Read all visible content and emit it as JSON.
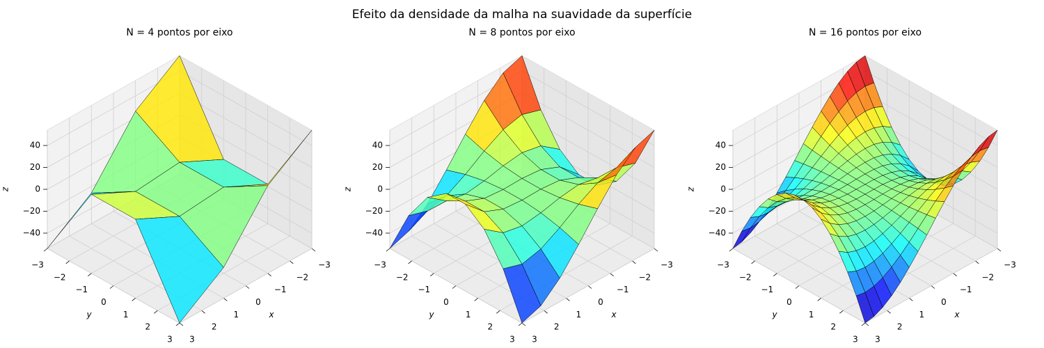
{
  "title": "Efeito da densidade da malha na suavidade da superfície",
  "chart_data": [
    {
      "type": "surface",
      "title": "N = 4 pontos por eixo",
      "colormap": "jet",
      "grid": true,
      "xlabel": "x",
      "ylabel": "y",
      "zlabel": "z",
      "x": [
        -3,
        -1,
        1,
        3
      ],
      "y": [
        -3,
        -1,
        1,
        3
      ],
      "z": [
        [
          54,
          26,
          -26,
          -54
        ],
        [
          -18,
          2,
          -2,
          18
        ],
        [
          -18,
          2,
          -2,
          18
        ],
        [
          54,
          26,
          -26,
          -54
        ]
      ],
      "xlim": [
        -3,
        3
      ],
      "ylim": [
        -3,
        3
      ],
      "zlim": [
        -54,
        54
      ],
      "xticks": [
        {
          "value": -3,
          "label": "−3"
        },
        {
          "value": -2,
          "label": "−2"
        },
        {
          "value": -1,
          "label": "−1"
        },
        0,
        1,
        2,
        3
      ],
      "yticks": [
        {
          "value": -3,
          "label": "−3"
        },
        {
          "value": -2,
          "label": "−2"
        },
        {
          "value": -1,
          "label": "−1"
        },
        0,
        1,
        2,
        3
      ],
      "zticks": [
        {
          "value": -40,
          "label": "−40"
        },
        {
          "value": -20,
          "label": "−20"
        },
        0,
        20,
        40
      ]
    },
    {
      "type": "surface",
      "title": "N = 8 pontos por eixo",
      "colormap": "jet",
      "grid": true,
      "xlabel": "x",
      "ylabel": "y",
      "zlabel": "z",
      "x": [
        -3,
        -2.142857,
        -1.285714,
        -0.428571,
        0.428571,
        1.285714,
        2.142857,
        3
      ],
      "y": [
        -3,
        -2.142857,
        -1.285714,
        -0.428571,
        0.428571,
        1.285714,
        2.142857,
        3
      ],
      "z": [
        [
          54,
          48,
          32.6,
          11.5,
          -11.5,
          -32.6,
          -48,
          -54
        ],
        [
          14.3,
          19.7,
          15.6,
          5.8,
          -5.8,
          -15.6,
          -19.7,
          -14.3
        ],
        [
          -12.1,
          0.8,
          4.3,
          2,
          -2,
          -4.3,
          -0.8,
          12.1
        ],
        [
          -25.3,
          -8.7,
          -1.4,
          0.2,
          -0.2,
          1.4,
          8.7,
          25.3
        ],
        [
          -25.3,
          -8.7,
          -1.4,
          0.2,
          -0.2,
          1.4,
          8.7,
          25.3
        ],
        [
          -12.1,
          0.8,
          4.3,
          2,
          -2,
          -4.3,
          -0.8,
          12.1
        ],
        [
          14.3,
          19.7,
          15.6,
          5.8,
          -5.8,
          -15.6,
          -19.7,
          -14.3
        ],
        [
          54,
          48,
          32.6,
          11.5,
          -11.5,
          -32.6,
          -48,
          -54
        ]
      ],
      "xlim": [
        -3,
        3
      ],
      "ylim": [
        -3,
        3
      ],
      "zlim": [
        -54,
        54
      ],
      "xticks": [
        {
          "value": -3,
          "label": "−3"
        },
        {
          "value": -2,
          "label": "−2"
        },
        {
          "value": -1,
          "label": "−1"
        },
        0,
        1,
        2,
        3
      ],
      "yticks": [
        {
          "value": -3,
          "label": "−3"
        },
        {
          "value": -2,
          "label": "−2"
        },
        {
          "value": -1,
          "label": "−1"
        },
        0,
        1,
        2,
        3
      ],
      "zticks": [
        {
          "value": -40,
          "label": "−40"
        },
        {
          "value": -20,
          "label": "−20"
        },
        0,
        20,
        40
      ]
    },
    {
      "type": "surface",
      "title": "N = 16 pontos por eixo",
      "colormap": "jet",
      "grid": true,
      "xlabel": "x",
      "ylabel": "y",
      "zlabel": "z",
      "x": [
        -3,
        -2.6,
        -2.2,
        -1.8,
        -1.4,
        -1,
        -0.6,
        -0.2,
        0.2,
        0.6,
        1,
        1.4,
        1.8,
        2.2,
        2.6,
        3
      ],
      "y": [
        -3,
        -2.6,
        -2.2,
        -1.8,
        -1.4,
        -1,
        -0.6,
        -0.2,
        0.2,
        0.6,
        1,
        1.4,
        1.8,
        2.2,
        2.6,
        3
      ],
      "z": [
        [
          54,
          52.6,
          48.8,
          42.8,
          35.1,
          26,
          16,
          5.4,
          -5.4,
          -16,
          -26,
          -35.1,
          -42.8,
          -48.8,
          -52.6,
          -54
        ],
        [
          33.8,
          35.2,
          34,
          30.7,
          25.6,
          19.3,
          12,
          4,
          -4,
          -12,
          -19.3,
          -25.6,
          -30.7,
          -34,
          -35.2,
          -33.8
        ],
        [
          16.6,
          20.2,
          21.3,
          20.3,
          17.6,
          13.5,
          8.5,
          2.9,
          -2.9,
          -8.5,
          -13.5,
          -17.6,
          -20.3,
          -21.3,
          -20.2,
          -16.6
        ],
        [
          2.2,
          7.7,
          10.7,
          11.7,
          10.9,
          8.7,
          5.6,
          1.9,
          -1.9,
          -5.6,
          -8.7,
          -10.9,
          -11.7,
          -10.7,
          -7.7,
          -2.2
        ],
        [
          -9.4,
          -2.3,
          2.3,
          4.8,
          5.5,
          4.9,
          3.3,
          1.2,
          -1.2,
          -3.3,
          -4.9,
          -5.5,
          -4.8,
          -2.3,
          2.3,
          9.4
        ],
        [
          -18,
          -9.8,
          -4,
          -0.4,
          1.5,
          2,
          1.6,
          0.6,
          -0.6,
          -1.6,
          -2,
          -1.5,
          0.4,
          4,
          9.8,
          18
        ],
        [
          -23.8,
          -14.8,
          -8.3,
          -3.9,
          -1.2,
          0.1,
          0.4,
          0.2,
          -0.2,
          -0.4,
          -0.1,
          1.2,
          3.9,
          8.3,
          14.8,
          23.8
        ],
        [
          -26.6,
          -17.3,
          -10.4,
          -5.6,
          -2.6,
          -0.9,
          -0.1,
          0,
          0,
          0.1,
          0.9,
          2.6,
          5.6,
          10.4,
          17.3,
          26.6
        ],
        [
          -26.6,
          -17.3,
          -10.4,
          -5.6,
          -2.6,
          -0.9,
          -0.1,
          0,
          0,
          0.1,
          0.9,
          2.6,
          5.6,
          10.4,
          17.3,
          26.6
        ],
        [
          -23.8,
          -14.8,
          -8.3,
          -3.9,
          -1.2,
          0.1,
          0.4,
          0.2,
          -0.2,
          -0.4,
          -0.1,
          1.2,
          3.9,
          8.3,
          14.8,
          23.8
        ],
        [
          -18,
          -9.8,
          -4,
          -0.4,
          1.5,
          2,
          1.6,
          0.6,
          -0.6,
          -1.6,
          -2,
          -1.5,
          0.4,
          4,
          9.8,
          18
        ],
        [
          -9.4,
          -2.3,
          2.3,
          4.8,
          5.5,
          4.9,
          3.3,
          1.2,
          -1.2,
          -3.3,
          -4.9,
          -5.5,
          -4.8,
          -2.3,
          2.3,
          9.4
        ],
        [
          2.2,
          7.7,
          10.7,
          11.7,
          10.9,
          8.7,
          5.6,
          1.9,
          -1.9,
          -5.6,
          -8.7,
          -10.9,
          -11.7,
          -10.7,
          -7.7,
          -2.2
        ],
        [
          16.6,
          20.2,
          21.3,
          20.3,
          17.6,
          13.5,
          8.5,
          2.9,
          -2.9,
          -8.5,
          -13.5,
          -17.6,
          -20.3,
          -21.3,
          -20.2,
          -16.6
        ],
        [
          33.8,
          35.2,
          34,
          30.7,
          25.6,
          19.3,
          12,
          4,
          -4,
          -12,
          -19.3,
          -25.6,
          -30.7,
          -34,
          -35.2,
          -33.8
        ],
        [
          54,
          52.6,
          48.8,
          42.8,
          35.1,
          26,
          16,
          5.4,
          -5.4,
          -16,
          -26,
          -35.1,
          -42.8,
          -48.8,
          -52.6,
          -54
        ]
      ],
      "xlim": [
        -3,
        3
      ],
      "ylim": [
        -3,
        3
      ],
      "zlim": [
        -54,
        54
      ],
      "xticks": [
        {
          "value": -3,
          "label": "−3"
        },
        {
          "value": -2,
          "label": "−2"
        },
        {
          "value": -1,
          "label": "−1"
        },
        0,
        1,
        2,
        3
      ],
      "yticks": [
        {
          "value": -3,
          "label": "−3"
        },
        {
          "value": -2,
          "label": "−2"
        },
        {
          "value": -1,
          "label": "−1"
        },
        0,
        1,
        2,
        3
      ],
      "zticks": [
        {
          "value": -40,
          "label": "−40"
        },
        {
          "value": -20,
          "label": "−20"
        },
        0,
        20,
        40
      ]
    }
  ]
}
